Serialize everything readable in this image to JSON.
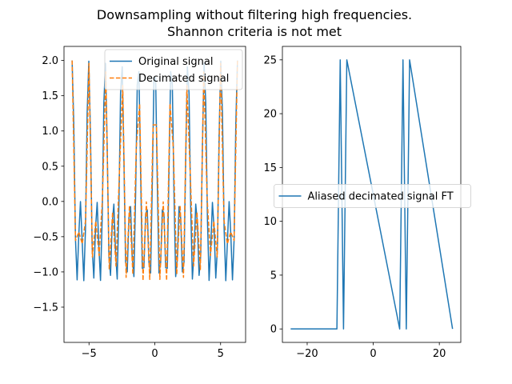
{
  "figure": {
    "title_line1": "Downsampling without filtering high frequencies.",
    "title_line2": "Shannon criteria is not met"
  },
  "colors": {
    "original": "#1f77b4",
    "decimated": "#ff7f0e",
    "ft": "#1f77b4"
  },
  "chart_data": [
    {
      "type": "line",
      "title": "",
      "xlabel": "",
      "ylabel": "",
      "xlim": [
        -6.9,
        6.9
      ],
      "ylim": [
        -2.0,
        2.2
      ],
      "xticks": [
        -5,
        0,
        5
      ],
      "xtick_labels": [
        "−5",
        "0",
        "5"
      ],
      "yticks": [
        -1.5,
        -1.0,
        -0.5,
        0.0,
        0.5,
        1.0,
        1.5,
        2.0
      ],
      "ytick_labels": [
        "−1.5",
        "−1.0",
        "−0.5",
        "0.0",
        "0.5",
        "1.0",
        "1.5",
        "2.0"
      ],
      "legend": "top-right",
      "series": [
        {
          "name": "Original signal",
          "style": "solid",
          "formula": "cos(5t)+cos(10t)",
          "x_range": [
            -6.2832,
            6.2832
          ],
          "samples": 100
        },
        {
          "name": "Decimated signal",
          "style": "dashed",
          "formula": "cos(5t)+cos(10t)",
          "x_range": [
            -6.2832,
            6.2832
          ],
          "samples": 50
        }
      ]
    },
    {
      "type": "line",
      "title": "",
      "xlabel": "",
      "ylabel": "",
      "xlim": [
        -27.5,
        26.5
      ],
      "ylim": [
        -1.25,
        26.25
      ],
      "xticks": [
        -20,
        0,
        20
      ],
      "xtick_labels": [
        "−20",
        "0",
        "20"
      ],
      "yticks": [
        0,
        5,
        10,
        15,
        20,
        25
      ],
      "ytick_labels": [
        "0",
        "5",
        "10",
        "15",
        "20",
        "25"
      ],
      "legend": "center",
      "series": [
        {
          "name": "Aliased decimated signal FT",
          "x": [
            -25,
            -11,
            -10,
            -9,
            -8,
            8,
            9,
            10,
            11,
            24
          ],
          "y": [
            0,
            0,
            25,
            0,
            25,
            0,
            25,
            0,
            25,
            0
          ]
        }
      ]
    }
  ]
}
